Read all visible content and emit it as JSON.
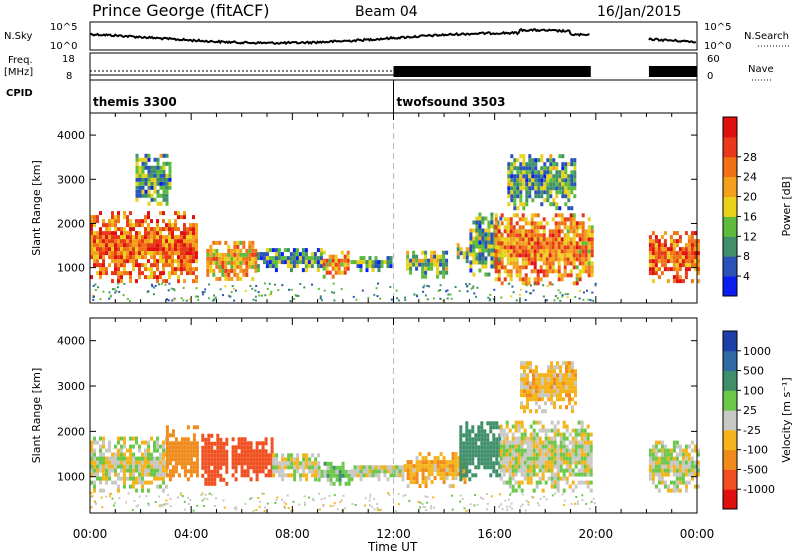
{
  "header": {
    "station": "Prince George (fitACF)",
    "beam": "Beam 04",
    "date": "16/Jan/2015"
  },
  "strip_labels": {
    "nsky": "N.Sky",
    "nsearch": "N.Search",
    "freq_line1": "Freq.",
    "freq_line2": "[MHz]",
    "nave": "Nave",
    "cpid": "CPID"
  },
  "strip_ticks": {
    "nsky_top": "10^5",
    "nsky_bottom": "10^0",
    "nsearch_top": "10^5",
    "nsearch_bottom": "10^0",
    "freq_top": "18",
    "freq_bottom": "8",
    "nave_top": "60",
    "nave_bottom": "0"
  },
  "cpid_programs": [
    {
      "name": "themis 3300",
      "start_hour": 0
    },
    {
      "name": "twofsound 3503",
      "start_hour": 12
    }
  ],
  "x_axis": {
    "label": "Time UT",
    "range_hours": [
      0,
      24
    ],
    "ticks": [
      "00:00",
      "04:00",
      "08:00",
      "12:00",
      "16:00",
      "20:00",
      "00:00"
    ],
    "tick_hours": [
      0,
      4,
      8,
      12,
      16,
      20,
      24
    ]
  },
  "chart_data": [
    {
      "type": "heatmap",
      "name": "power-panel",
      "xlabel": "Time UT",
      "ylabel": "Slant Range [km]",
      "xlim": [
        0,
        24
      ],
      "ylim": [
        200,
        4500
      ],
      "y_ticks": [
        1000,
        2000,
        3000,
        4000
      ],
      "colorbar_label": "Power [dB]",
      "colorbar_ticks": [
        "4",
        "8",
        "12",
        "16",
        "20",
        "24",
        "28"
      ],
      "colorbar_colors": [
        "#0a1cf0",
        "#2a52b8",
        "#3f8f6a",
        "#5dbb3c",
        "#e8d21b",
        "#f5a01c",
        "#f07215",
        "#e83a1a",
        "#e01010"
      ],
      "regions": [
        {
          "t0": 0.0,
          "t1": 4.2,
          "r0": 650,
          "r1": 2200,
          "value": 22
        },
        {
          "t0": 1.8,
          "t1": 3.2,
          "r0": 2400,
          "r1": 3500,
          "value": 10
        },
        {
          "t0": 4.6,
          "t1": 6.6,
          "r0": 700,
          "r1": 1600,
          "value": 18
        },
        {
          "t0": 6.6,
          "t1": 9.2,
          "r0": 900,
          "r1": 1400,
          "value": 8
        },
        {
          "t0": 9.2,
          "t1": 10.2,
          "r0": 750,
          "r1": 1300,
          "value": 18
        },
        {
          "t0": 10.3,
          "t1": 11.9,
          "r0": 900,
          "r1": 1200,
          "value": 9
        },
        {
          "t0": 12.5,
          "t1": 14.1,
          "r0": 750,
          "r1": 1350,
          "value": 12
        },
        {
          "t0": 14.5,
          "t1": 15.0,
          "r0": 1100,
          "r1": 1500,
          "value": 12
        },
        {
          "t0": 15.0,
          "t1": 16.2,
          "r0": 800,
          "r1": 2200,
          "value": 10
        },
        {
          "t0": 16.0,
          "t1": 19.8,
          "r0": 600,
          "r1": 2200,
          "value": 20
        },
        {
          "t0": 16.5,
          "t1": 19.2,
          "r0": 2300,
          "r1": 3500,
          "value": 10
        },
        {
          "t0": 22.1,
          "t1": 24.0,
          "r0": 650,
          "r1": 1750,
          "value": 22
        }
      ]
    },
    {
      "type": "heatmap",
      "name": "velocity-panel",
      "xlabel": "Time UT",
      "ylabel": "Slant Range [km]",
      "xlim": [
        0,
        24
      ],
      "ylim": [
        200,
        4500
      ],
      "y_ticks": [
        1000,
        2000,
        3000,
        4000
      ],
      "colorbar_label": "Velocity [m s⁻¹]",
      "colorbar_ticks": [
        "1000",
        "500",
        "100",
        "25",
        "-25",
        "-100",
        "-500",
        "-1000"
      ],
      "colorbar_colors": [
        "#1f3fa8",
        "#2f6aa5",
        "#3f8f6a",
        "#6cc84a",
        "#c8c8c4",
        "#f5b41c",
        "#f08a1a",
        "#f05020",
        "#e01010"
      ],
      "regions": [
        {
          "t0": 0.0,
          "t1": 3.0,
          "r0": 650,
          "r1": 1800,
          "value": 0
        },
        {
          "t0": 3.0,
          "t1": 4.2,
          "r0": 900,
          "r1": 2100,
          "value": -300
        },
        {
          "t0": 4.4,
          "t1": 5.4,
          "r0": 800,
          "r1": 1900,
          "value": -600
        },
        {
          "t0": 5.6,
          "t1": 7.2,
          "r0": 900,
          "r1": 1800,
          "value": -700
        },
        {
          "t0": 7.2,
          "t1": 9.0,
          "r0": 900,
          "r1": 1500,
          "value": 0
        },
        {
          "t0": 9.0,
          "t1": 10.2,
          "r0": 800,
          "r1": 1300,
          "value": 60
        },
        {
          "t0": 10.3,
          "t1": 12.4,
          "r0": 900,
          "r1": 1250,
          "value": 0
        },
        {
          "t0": 12.4,
          "t1": 14.8,
          "r0": 750,
          "r1": 1500,
          "value": -80
        },
        {
          "t0": 14.6,
          "t1": 16.2,
          "r0": 900,
          "r1": 2200,
          "value": 200
        },
        {
          "t0": 16.2,
          "t1": 19.8,
          "r0": 650,
          "r1": 2200,
          "value": 0
        },
        {
          "t0": 17.0,
          "t1": 19.2,
          "r0": 2400,
          "r1": 3500,
          "value": -60
        },
        {
          "t0": 22.1,
          "t1": 24.0,
          "r0": 650,
          "r1": 1750,
          "value": 0
        }
      ]
    }
  ]
}
